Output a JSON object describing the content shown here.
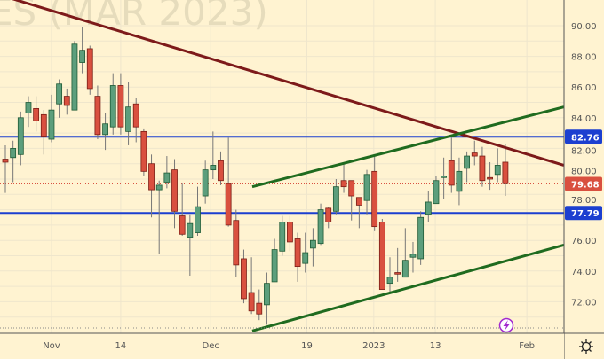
{
  "watermark": "ES (MAR 2023)",
  "colors": {
    "background": "#fff3d1",
    "grid": "#efe6cc",
    "up_candle": "#5c9e7c",
    "up_border": "#1f5b36",
    "down_candle": "#d9503f",
    "down_border": "#7a1d15",
    "horizontal_level": "#1c3fd0",
    "resistance_trendline": "#7d1a1a",
    "channel_lines": "#1f6b1f",
    "last_price": "#d9503f"
  },
  "chart_data": {
    "type": "candlestick",
    "price_ticks": [
      "90.00",
      "88.00",
      "86.00",
      "84.00",
      "82.00",
      "80.00",
      "78.00",
      "76.00",
      "74.00",
      "72.00"
    ],
    "price_tick_values": [
      90,
      88,
      86,
      84,
      82,
      80,
      78,
      76,
      74,
      72
    ],
    "time_ticks": [
      {
        "label": "Nov",
        "index": 6
      },
      {
        "label": "14",
        "index": 15
      },
      {
        "label": "Dec",
        "index": 26.7
      },
      {
        "label": "19",
        "index": 39.2
      },
      {
        "label": "2023",
        "index": 47.9
      },
      {
        "label": "13",
        "index": 55.9
      },
      {
        "label": "Feb",
        "index": 67.8
      }
    ],
    "ylim": [
      70,
      91.6
    ],
    "grid": true,
    "candles": [
      [
        81.3,
        82.2,
        79.1,
        81.1
      ],
      [
        81.4,
        82.5,
        79.8,
        82.0
      ],
      [
        81.6,
        84.4,
        80.9,
        84.0
      ],
      [
        84.3,
        85.4,
        83.4,
        85.0
      ],
      [
        84.6,
        85.4,
        83.1,
        83.8
      ],
      [
        84.2,
        84.5,
        81.6,
        82.8
      ],
      [
        82.6,
        85.5,
        82.4,
        84.5
      ],
      [
        84.9,
        86.5,
        84.0,
        86.2
      ],
      [
        85.4,
        85.9,
        84.2,
        84.8
      ],
      [
        84.5,
        89.0,
        84.5,
        88.8
      ],
      [
        87.6,
        89.9,
        86.9,
        88.4
      ],
      [
        88.5,
        88.7,
        85.5,
        85.9
      ],
      [
        85.4,
        86.1,
        82.6,
        82.9
      ],
      [
        82.9,
        84.3,
        81.9,
        83.6
      ],
      [
        83.4,
        86.9,
        82.9,
        86.1
      ],
      [
        86.1,
        86.9,
        82.9,
        83.4
      ],
      [
        83.1,
        86.3,
        82.2,
        84.7
      ],
      [
        84.9,
        85.3,
        82.4,
        83.4
      ],
      [
        83.1,
        83.3,
        80.2,
        80.5
      ],
      [
        81.0,
        81.6,
        77.5,
        79.3
      ],
      [
        79.3,
        79.9,
        75.1,
        79.6
      ],
      [
        79.8,
        81.5,
        79.4,
        80.4
      ],
      [
        80.6,
        81.3,
        76.8,
        77.9
      ],
      [
        77.6,
        79.7,
        76.3,
        76.4
      ],
      [
        76.2,
        77.7,
        73.7,
        77.1
      ],
      [
        76.5,
        79.5,
        76.3,
        78.2
      ],
      [
        78.9,
        81.2,
        78.4,
        80.6
      ],
      [
        80.6,
        83.1,
        80.0,
        80.9
      ],
      [
        81.2,
        81.8,
        79.6,
        79.9
      ],
      [
        79.7,
        82.7,
        76.9,
        77.0
      ],
      [
        77.3,
        78.0,
        73.6,
        74.4
      ],
      [
        74.8,
        75.4,
        71.9,
        72.2
      ],
      [
        72.6,
        74.9,
        71.2,
        71.4
      ],
      [
        71.9,
        72.8,
        70.8,
        71.2
      ],
      [
        71.8,
        73.9,
        70.5,
        73.2
      ],
      [
        73.3,
        76.1,
        73.3,
        75.4
      ],
      [
        75.3,
        77.6,
        75.0,
        77.2
      ],
      [
        77.2,
        77.6,
        75.3,
        75.9
      ],
      [
        76.1,
        76.5,
        73.3,
        74.3
      ],
      [
        74.5,
        76.5,
        73.9,
        75.2
      ],
      [
        75.5,
        76.8,
        74.3,
        76.0
      ],
      [
        75.8,
        78.4,
        75.7,
        78.0
      ],
      [
        78.1,
        78.2,
        76.8,
        77.2
      ],
      [
        77.9,
        80.0,
        77.7,
        79.5
      ],
      [
        79.9,
        81.0,
        79.1,
        79.5
      ],
      [
        79.9,
        79.9,
        77.3,
        78.9
      ],
      [
        78.8,
        78.8,
        76.8,
        78.3
      ],
      [
        78.6,
        80.6,
        77.7,
        80.3
      ],
      [
        80.5,
        81.6,
        76.6,
        76.9
      ],
      [
        77.2,
        77.4,
        72.8,
        72.8
      ],
      [
        73.2,
        74.9,
        72.5,
        73.6
      ],
      [
        73.9,
        75.5,
        73.3,
        73.8
      ],
      [
        73.6,
        76.8,
        73.6,
        74.7
      ],
      [
        74.9,
        75.9,
        73.9,
        75.1
      ],
      [
        74.8,
        77.9,
        74.4,
        77.5
      ],
      [
        77.7,
        79.2,
        77.2,
        78.5
      ],
      [
        78.4,
        80.2,
        78.4,
        79.9
      ],
      [
        80.1,
        81.4,
        78.7,
        80.2
      ],
      [
        81.2,
        82.7,
        79.1,
        79.6
      ],
      [
        79.2,
        81.4,
        78.3,
        80.5
      ],
      [
        80.7,
        81.8,
        79.8,
        81.5
      ],
      [
        81.7,
        82.5,
        80.9,
        81.5
      ],
      [
        81.5,
        82.1,
        79.5,
        79.9
      ],
      [
        80.1,
        81.1,
        79.3,
        80.0
      ],
      [
        80.3,
        82.0,
        79.8,
        80.9
      ],
      [
        81.1,
        82.3,
        78.9,
        79.7
      ]
    ],
    "horizontal_levels": [
      {
        "label": "82.76",
        "value": 82.76
      },
      {
        "label": "77.79",
        "value": 77.79
      }
    ],
    "last_price": {
      "label": "79.68",
      "value": 79.68
    },
    "trendlines": [
      {
        "kind": "resistance",
        "from": [
          -0.7,
          92.0
        ],
        "to": [
          72.6,
          80.9
        ]
      },
      {
        "kind": "channel-upper",
        "from": [
          32.1,
          79.5
        ],
        "to": [
          72.6,
          84.7
        ]
      },
      {
        "kind": "channel-lower",
        "from": [
          32.1,
          70.1
        ],
        "to": [
          72.6,
          75.7
        ]
      }
    ]
  },
  "icons": {
    "lightning": "lightning-icon",
    "settings": "gear-icon"
  }
}
